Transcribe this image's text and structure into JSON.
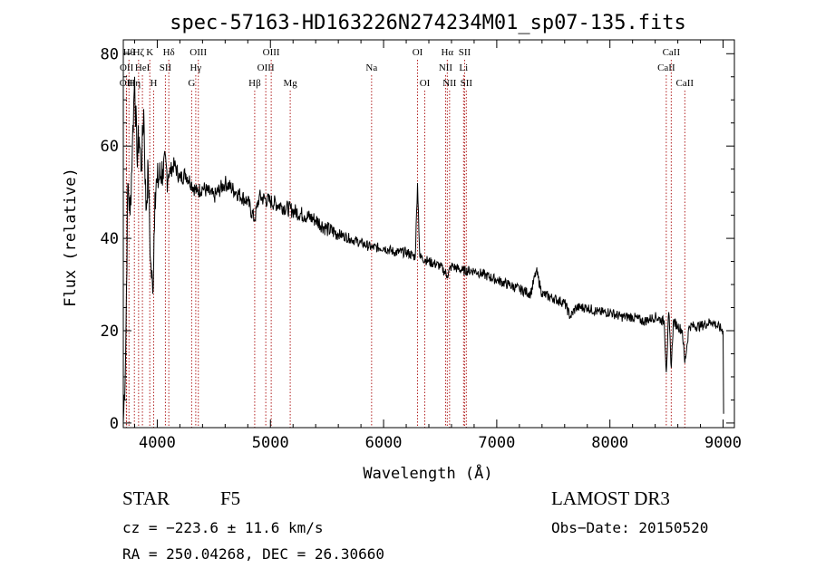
{
  "chart_data": {
    "type": "line",
    "title": "spec-57163-HD163226N274234M01_sp07-135.fits",
    "xlabel": "Wavelength (Å)",
    "ylabel": "Flux (relative)",
    "xlim": [
      3700,
      9100
    ],
    "ylim": [
      -1,
      83
    ],
    "x_ticks": [
      4000,
      5000,
      6000,
      7000,
      8000,
      9000
    ],
    "y_ticks": [
      0,
      20,
      40,
      60,
      80
    ],
    "colors": {
      "spectrum": "#000000",
      "line_marker": "#b22222",
      "axis": "#000000"
    },
    "series": [
      {
        "name": "flux",
        "x": [
          3700,
          3720,
          3740,
          3760,
          3780,
          3800,
          3820,
          3840,
          3860,
          3880,
          3900,
          3920,
          3940,
          3960,
          3980,
          4000,
          4050,
          4100,
          4150,
          4200,
          4250,
          4300,
          4350,
          4400,
          4500,
          4600,
          4700,
          4800,
          4860,
          4900,
          5000,
          5100,
          5200,
          5300,
          5400,
          5500,
          5600,
          5700,
          5800,
          5900,
          6000,
          6100,
          6200,
          6280,
          6300,
          6320,
          6400,
          6500,
          6563,
          6600,
          6700,
          6800,
          6900,
          7000,
          7100,
          7200,
          7300,
          7350,
          7400,
          7500,
          7600,
          7650,
          7700,
          7800,
          7900,
          8000,
          8100,
          8200,
          8300,
          8400,
          8480,
          8498,
          8520,
          8542,
          8560,
          8600,
          8640,
          8662,
          8700,
          8800,
          8900,
          9000,
          9005
        ],
        "y": [
          0,
          14,
          52,
          45,
          60,
          75,
          58,
          62,
          55,
          68,
          46,
          55,
          35,
          28,
          50,
          52,
          55,
          54,
          56,
          53,
          54,
          52,
          50,
          51,
          49,
          52,
          50,
          48,
          44,
          49,
          48,
          47,
          46,
          45,
          44,
          42,
          41,
          40,
          39,
          38,
          38,
          37,
          37,
          36,
          52,
          36,
          35,
          34,
          32,
          34,
          33,
          33,
          32,
          31,
          30,
          29,
          28,
          33,
          28,
          27,
          26,
          23,
          25,
          25,
          24,
          24,
          23,
          23,
          22,
          23,
          22,
          11,
          24,
          12,
          22,
          21,
          20,
          13,
          21,
          21,
          22,
          20,
          2
        ]
      }
    ],
    "spectral_lines": [
      {
        "label": "OII",
        "x": 3727,
        "row": 3
      },
      {
        "label": "OII",
        "x": 3729,
        "row": 2
      },
      {
        "label": "Hθ",
        "x": 3750,
        "row": 1
      },
      {
        "label": "Hη",
        "x": 3798,
        "row": 3
      },
      {
        "label": "Hζ",
        "x": 3835,
        "row": 1
      },
      {
        "label": "HeI",
        "x": 3869,
        "row": 2
      },
      {
        "label": "K",
        "x": 3934,
        "row": 1
      },
      {
        "label": "H",
        "x": 3968,
        "row": 3
      },
      {
        "label": "SII",
        "x": 4072,
        "row": 2
      },
      {
        "label": "Hδ",
        "x": 4102,
        "row": 1
      },
      {
        "label": "G",
        "x": 4304,
        "row": 3
      },
      {
        "label": "Hγ",
        "x": 4340,
        "row": 2
      },
      {
        "label": "OIII",
        "x": 4363,
        "row": 1
      },
      {
        "label": "Hβ",
        "x": 4861,
        "row": 3
      },
      {
        "label": "OIII",
        "x": 4959,
        "row": 2
      },
      {
        "label": "OIII",
        "x": 5007,
        "row": 1
      },
      {
        "label": "Mg",
        "x": 5175,
        "row": 3
      },
      {
        "label": "Na",
        "x": 5894,
        "row": 2
      },
      {
        "label": "OI",
        "x": 6300,
        "row": 1
      },
      {
        "label": "OI",
        "x": 6364,
        "row": 3
      },
      {
        "label": "NII",
        "x": 6548,
        "row": 2
      },
      {
        "label": "Hα",
        "x": 6563,
        "row": 1
      },
      {
        "label": "NII",
        "x": 6583,
        "row": 3
      },
      {
        "label": "Li",
        "x": 6707,
        "row": 2
      },
      {
        "label": "SII",
        "x": 6716,
        "row": 1
      },
      {
        "label": "SII",
        "x": 6731,
        "row": 3
      },
      {
        "label": "CaII",
        "x": 8498,
        "row": 2
      },
      {
        "label": "CaII",
        "x": 8542,
        "row": 1
      },
      {
        "label": "CaII",
        "x": 8662,
        "row": 3
      }
    ]
  },
  "info": {
    "class_label": "STAR",
    "subclass": "F5",
    "survey": "LAMOST DR3",
    "cz": "cz = −223.6 ± 11.6 km/s",
    "obs_date": "Obs−Date: 20150520",
    "coords": "RA = 250.04268, DEC =  26.30660"
  }
}
